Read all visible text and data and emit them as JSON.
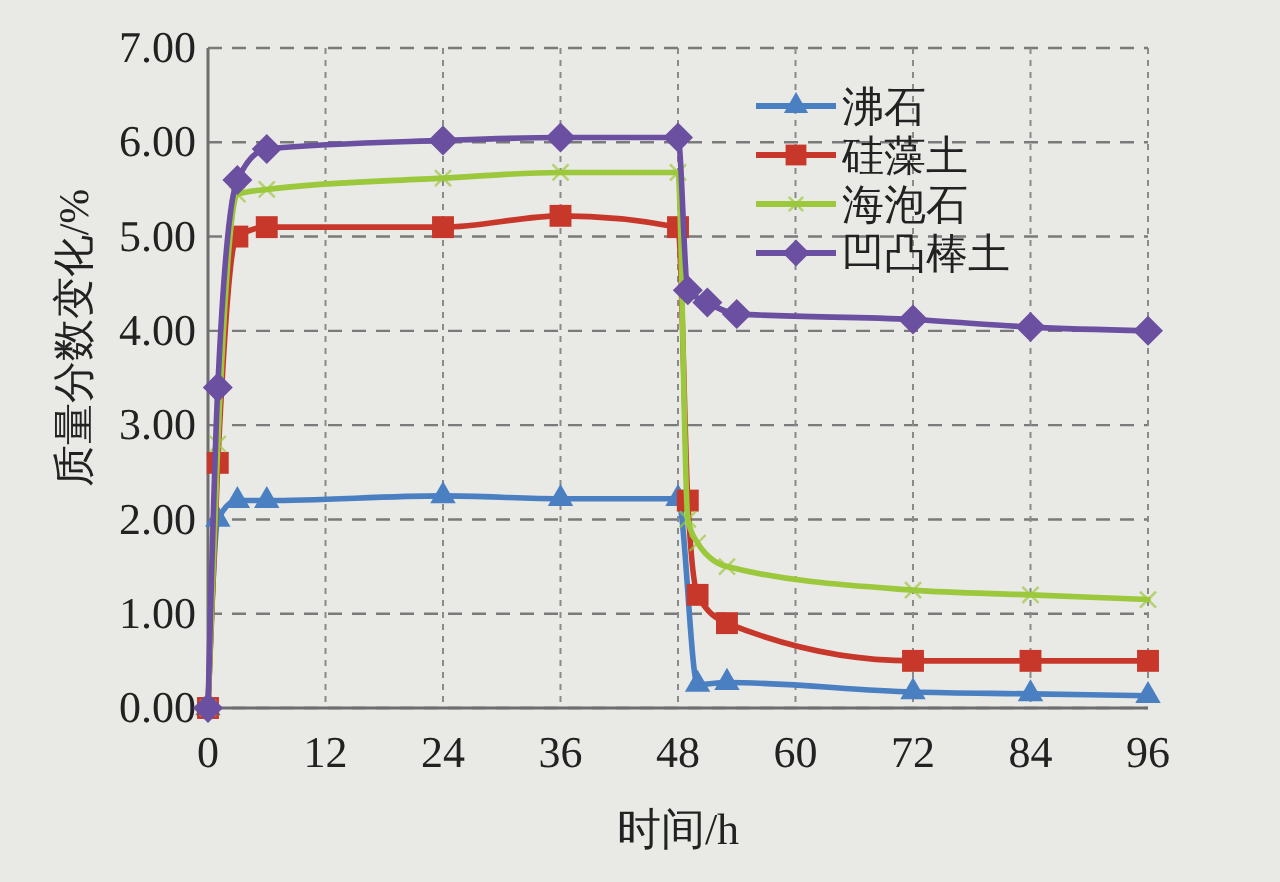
{
  "chart_data": {
    "type": "line",
    "xlabel": "时间/h",
    "ylabel": "质量分数变化/%",
    "xlim": [
      0,
      96
    ],
    "xticks": [
      0,
      12,
      24,
      36,
      48,
      60,
      72,
      84,
      96
    ],
    "ylim": [
      0,
      7
    ],
    "yticks": [
      {
        "value": 0,
        "label": "0.00"
      },
      {
        "value": 1,
        "label": "1.00"
      },
      {
        "value": 2,
        "label": "2.00"
      },
      {
        "value": 3,
        "label": "3.00"
      },
      {
        "value": 4,
        "label": "4.00"
      },
      {
        "value": 5,
        "label": "5.00"
      },
      {
        "value": 6,
        "label": "6.00"
      },
      {
        "value": 7,
        "label": "7.00"
      }
    ],
    "grid": true,
    "legend": "top right",
    "series": [
      {
        "name": "沸石",
        "color": "#4a7fc1",
        "marker": "triangle",
        "x": [
          0,
          1,
          3,
          6,
          24,
          36,
          48,
          50,
          53,
          72,
          84,
          96
        ],
        "values": [
          0,
          2.0,
          2.2,
          2.2,
          2.25,
          2.22,
          2.22,
          0.25,
          0.27,
          0.17,
          0.15,
          0.13
        ]
      },
      {
        "name": "硅藻土",
        "color": "#c8382a",
        "marker": "square",
        "x": [
          0,
          1,
          3,
          6,
          24,
          36,
          48,
          49,
          50,
          53,
          72,
          84,
          96
        ],
        "values": [
          0,
          2.6,
          5.0,
          5.1,
          5.1,
          5.22,
          5.1,
          2.2,
          1.2,
          0.9,
          0.5,
          0.5,
          0.5
        ]
      },
      {
        "name": "海泡石",
        "color": "#9cc83c",
        "marker": "cross",
        "x": [
          0,
          1,
          3,
          6,
          24,
          36,
          48,
          49,
          50,
          53,
          72,
          84,
          96
        ],
        "values": [
          0,
          2.8,
          5.45,
          5.5,
          5.62,
          5.68,
          5.68,
          2.0,
          1.75,
          1.5,
          1.25,
          1.2,
          1.15
        ]
      },
      {
        "name": "凹凸棒土",
        "color": "#6b4fa0",
        "marker": "diamond",
        "x": [
          0,
          1,
          3,
          6,
          24,
          36,
          48,
          49,
          51,
          54,
          72,
          84,
          96
        ],
        "values": [
          0,
          3.4,
          5.6,
          5.93,
          6.02,
          6.05,
          6.05,
          4.43,
          4.3,
          4.18,
          4.12,
          4.04,
          4.0
        ]
      }
    ]
  }
}
